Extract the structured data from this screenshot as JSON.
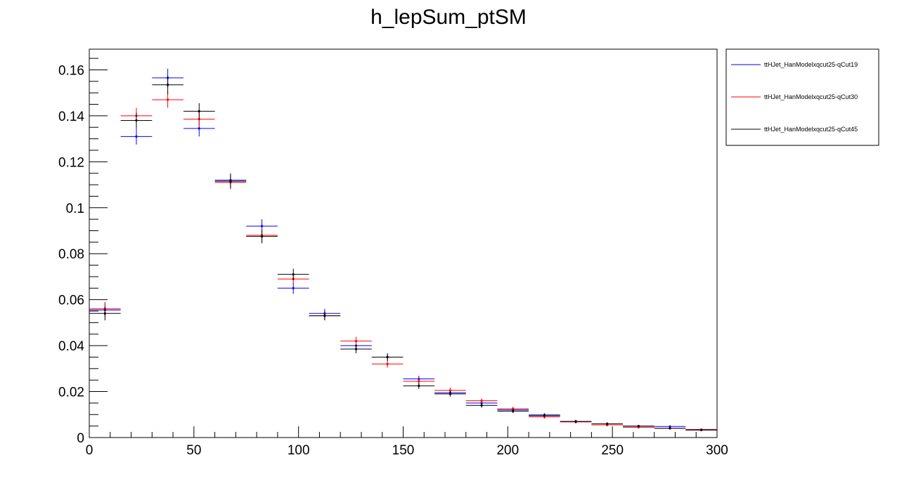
{
  "chart_data": {
    "type": "scatter",
    "title": "h_lepSum_ptSM",
    "xlabel": "",
    "ylabel": "",
    "xlim": [
      0,
      300
    ],
    "ylim": [
      0,
      0.169
    ],
    "grid": false,
    "legend_position": "top-right, outside plot",
    "bin_edges": [
      0,
      15,
      30,
      45,
      60,
      75,
      90,
      105,
      120,
      135,
      150,
      165,
      180,
      195,
      210,
      225,
      240,
      255,
      270,
      285,
      300
    ],
    "x_ticks_major": [
      0,
      50,
      100,
      150,
      200,
      250,
      300
    ],
    "x_tick_labels": [
      "0",
      "50",
      "100",
      "150",
      "200",
      "250",
      "300"
    ],
    "y_ticks_major": [
      0,
      0.02,
      0.04,
      0.06,
      0.08,
      0.1,
      0.12,
      0.14,
      0.16
    ],
    "y_tick_labels": [
      "0",
      "0.02",
      "0.04",
      "0.06",
      "0.08",
      "0.1",
      "0.12",
      "0.14",
      "0.16"
    ],
    "series": [
      {
        "name": "ttHJet_HanModelxqcut25-qCut19",
        "color": "#0000ff",
        "values": [
          0.0555,
          0.131,
          0.1565,
          0.1345,
          0.112,
          0.092,
          0.065,
          0.054,
          0.04,
          0.035,
          0.0255,
          0.0195,
          0.015,
          0.012,
          0.0095,
          0.007,
          0.0055,
          0.0045,
          0.0048,
          0.0033
        ],
        "errors": [
          0.003,
          0.0035,
          0.004,
          0.0035,
          0.003,
          0.003,
          0.0025,
          0.002,
          0.0018,
          0.0016,
          0.0014,
          0.0012,
          0.001,
          0.0009,
          0.0008,
          0.0007,
          0.0006,
          0.0005,
          0.0005,
          0.0004
        ]
      },
      {
        "name": "ttHJet_HanModelxqcut25-qCut30",
        "color": "#ff0000",
        "values": [
          0.056,
          0.14,
          0.147,
          0.1385,
          0.111,
          0.088,
          0.069,
          0.053,
          0.042,
          0.032,
          0.0245,
          0.0205,
          0.016,
          0.0125,
          0.009,
          0.0068,
          0.0055,
          0.0045,
          0.004,
          0.0035
        ],
        "errors": [
          0.003,
          0.0035,
          0.0035,
          0.0035,
          0.003,
          0.003,
          0.0025,
          0.002,
          0.0018,
          0.0016,
          0.0014,
          0.0012,
          0.001,
          0.0009,
          0.0008,
          0.0007,
          0.0006,
          0.0005,
          0.0005,
          0.0004
        ]
      },
      {
        "name": "ttHJet_HanModelxqcut25-qCut45",
        "color": "#000000",
        "values": [
          0.054,
          0.138,
          0.1535,
          0.142,
          0.1115,
          0.0875,
          0.071,
          0.053,
          0.0385,
          0.035,
          0.0225,
          0.019,
          0.014,
          0.0115,
          0.0098,
          0.007,
          0.006,
          0.005,
          0.004,
          0.0033
        ],
        "errors": [
          0.003,
          0.0035,
          0.004,
          0.0035,
          0.003,
          0.003,
          0.0025,
          0.002,
          0.0018,
          0.0016,
          0.0014,
          0.0012,
          0.001,
          0.0009,
          0.0008,
          0.0007,
          0.0006,
          0.0005,
          0.0005,
          0.0004
        ]
      }
    ]
  }
}
